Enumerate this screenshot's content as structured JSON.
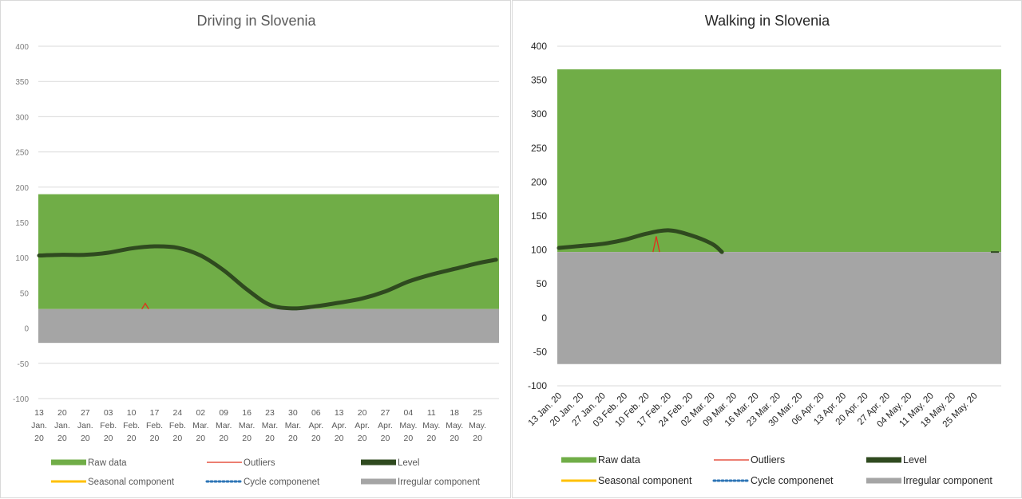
{
  "colors": {
    "raw": "#70ad47",
    "outliers": "#e0301e",
    "level": "#2f4a1f",
    "seasonal": "#ffc000",
    "cycle": "#2e75b6",
    "irregular": "#a5a5a5",
    "grid": "#d9d9d9",
    "tick": "#595959"
  },
  "legend_labels": {
    "raw": "Raw data",
    "outliers": "Outliers",
    "level": "Level",
    "seasonal": "Seasonal component",
    "cycle": "Cycle componenet",
    "irregular": "Irregular component"
  },
  "chart_data": [
    {
      "type": "area",
      "title": "Driving in Slovenia",
      "xlabel": "",
      "ylabel": "",
      "ylim": [
        -100,
        400
      ],
      "yticks": [
        "400",
        "350",
        "300",
        "250",
        "200",
        "150",
        "100",
        "50",
        "0",
        "-50",
        "-100"
      ],
      "grid": true,
      "legend": "bottom",
      "x_labels": [
        [
          "13",
          "Jan.",
          "20"
        ],
        [
          "20",
          "Jan.",
          "20"
        ],
        [
          "27",
          "Jan.",
          "20"
        ],
        [
          "03",
          "Feb.",
          "20"
        ],
        [
          "10",
          "Feb.",
          "20"
        ],
        [
          "17",
          "Feb.",
          "20"
        ],
        [
          "24",
          "Feb.",
          "20"
        ],
        [
          "02",
          "Mar.",
          "20"
        ],
        [
          "09",
          "Mar.",
          "20"
        ],
        [
          "16",
          "Mar.",
          "20"
        ],
        [
          "23",
          "Mar.",
          "20"
        ],
        [
          "30",
          "Mar.",
          "20"
        ],
        [
          "06",
          "Apr.",
          "20"
        ],
        [
          "13",
          "Apr.",
          "20"
        ],
        [
          "20",
          "Apr.",
          "20"
        ],
        [
          "27",
          "Apr.",
          "20"
        ],
        [
          "04",
          "May.",
          "20"
        ],
        [
          "11",
          "May.",
          "20"
        ],
        [
          "18",
          "May.",
          "20"
        ],
        [
          "25",
          "May.",
          "20"
        ]
      ],
      "raw_data": {
        "top": 190,
        "bottom": 27
      },
      "irregular": {
        "top": 27,
        "bottom": -21
      },
      "level": [
        [
          0,
          103
        ],
        [
          1,
          104
        ],
        [
          2,
          104
        ],
        [
          3,
          107
        ],
        [
          4,
          113
        ],
        [
          5,
          116
        ],
        [
          6,
          114
        ],
        [
          7,
          103
        ],
        [
          8,
          82
        ],
        [
          9,
          55
        ],
        [
          10,
          33
        ],
        [
          11,
          28
        ],
        [
          12,
          31
        ],
        [
          13,
          36
        ],
        [
          14,
          42
        ],
        [
          15,
          52
        ],
        [
          16,
          66
        ],
        [
          17,
          76
        ],
        [
          18,
          84
        ],
        [
          19,
          92
        ],
        [
          19.8,
          97
        ]
      ],
      "outliers": [
        [
          4.45,
          27
        ],
        [
          4.6,
          35
        ],
        [
          4.75,
          27
        ]
      ]
    },
    {
      "type": "area",
      "title": "Walking in Slovenia",
      "xlabel": "",
      "ylabel": "",
      "ylim": [
        -100,
        400
      ],
      "yticks": [
        "400",
        "350",
        "300",
        "250",
        "200",
        "150",
        "100",
        "50",
        "0",
        "-50",
        "-100"
      ],
      "grid": true,
      "legend": "bottom",
      "x_labels": [
        "13 Jan. 20",
        "20 Jan. 20",
        "27 Jan. 20",
        "03 Feb. 20",
        "10 Feb. 20",
        "17 Feb. 20",
        "24 Feb. 20",
        "02 Mar. 20",
        "09 Mar. 20",
        "16 Mar. 20",
        "23 Mar. 20",
        "30 Mar. 20",
        "06 Apr. 20",
        "13 Apr. 20",
        "20 Apr. 20",
        "27 Apr. 20",
        "04 May. 20",
        "11 May. 20",
        "18 May. 20",
        "25 May. 20"
      ],
      "raw_data": {
        "top": 366,
        "bottom": 97
      },
      "irregular": {
        "top": 97,
        "bottom": -68
      },
      "level": [
        [
          0,
          103
        ],
        [
          1,
          106
        ],
        [
          2,
          109
        ],
        [
          3,
          115
        ],
        [
          4,
          124
        ],
        [
          5,
          129
        ],
        [
          6,
          122
        ],
        [
          7,
          109
        ],
        [
          7.45,
          97
        ]
      ],
      "outliers": [
        [
          4.3,
          97
        ],
        [
          4.45,
          120
        ],
        [
          4.6,
          97
        ]
      ]
    }
  ]
}
